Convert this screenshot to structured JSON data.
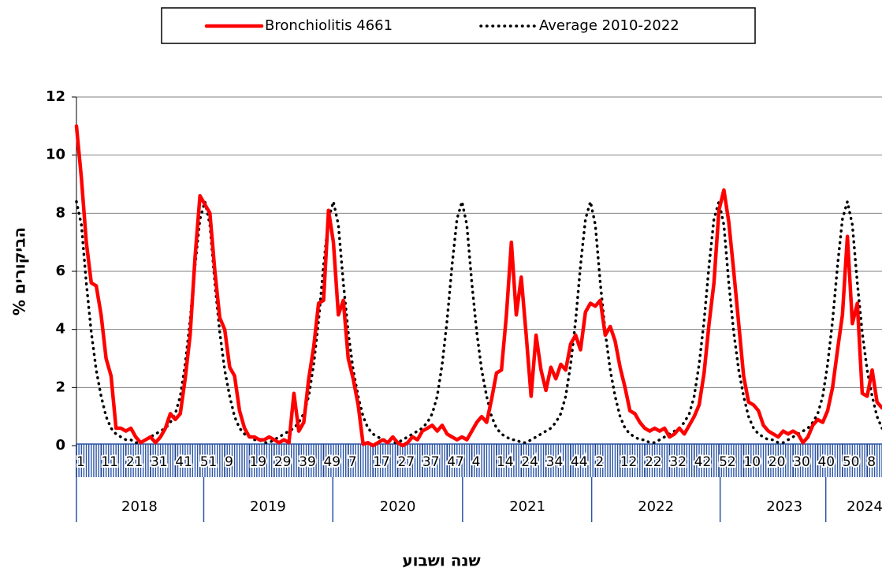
{
  "chart_data": {
    "type": "line",
    "x_title": "שנה ושבוע",
    "y_title": "% הביקורים",
    "xlim": [
      0,
      326
    ],
    "ylim": [
      0,
      12
    ],
    "yticks": [
      0,
      2,
      4,
      6,
      8,
      10,
      12
    ],
    "grid": true,
    "xticks": [
      {
        "value": 0,
        "label": "1"
      },
      {
        "value": 10,
        "label": "11"
      },
      {
        "value": 20,
        "label": "21"
      },
      {
        "value": 30,
        "label": "31"
      },
      {
        "value": 40,
        "label": "41"
      },
      {
        "value": 50,
        "label": "51"
      },
      {
        "value": 60,
        "label": "9"
      },
      {
        "value": 70,
        "label": "19"
      },
      {
        "value": 80,
        "label": "29"
      },
      {
        "value": 90,
        "label": "39"
      },
      {
        "value": 100,
        "label": "49"
      },
      {
        "value": 110,
        "label": "7"
      },
      {
        "value": 120,
        "label": "17"
      },
      {
        "value": 130,
        "label": "27"
      },
      {
        "value": 140,
        "label": "37"
      },
      {
        "value": 150,
        "label": "47"
      },
      {
        "value": 160,
        "label": "4"
      },
      {
        "value": 170,
        "label": "14"
      },
      {
        "value": 180,
        "label": "24"
      },
      {
        "value": 190,
        "label": "34"
      },
      {
        "value": 200,
        "label": "44"
      },
      {
        "value": 210,
        "label": "2"
      },
      {
        "value": 220,
        "label": "12"
      },
      {
        "value": 230,
        "label": "22"
      },
      {
        "value": 240,
        "label": "32"
      },
      {
        "value": 250,
        "label": "42"
      },
      {
        "value": 260,
        "label": "52"
      },
      {
        "value": 270,
        "label": "10"
      },
      {
        "value": 280,
        "label": "20"
      },
      {
        "value": 290,
        "label": "30"
      },
      {
        "value": 300,
        "label": "40"
      },
      {
        "value": 310,
        "label": "50"
      },
      {
        "value": 320,
        "label": "8"
      }
    ],
    "year_ticks": [
      {
        "value": 25.5,
        "label": "2018"
      },
      {
        "value": 77.5,
        "label": "2019"
      },
      {
        "value": 130,
        "label": "2020"
      },
      {
        "value": 182.5,
        "label": "2021"
      },
      {
        "value": 234.5,
        "label": "2022"
      },
      {
        "value": 286.5,
        "label": "2023"
      },
      {
        "value": 320,
        "label": "2024"
      }
    ],
    "x": [
      0,
      2,
      4,
      6,
      8,
      10,
      12,
      14,
      16,
      18,
      20,
      22,
      24,
      26,
      28,
      30,
      32,
      34,
      36,
      38,
      40,
      42,
      44,
      46,
      48,
      50,
      52,
      54,
      56,
      58,
      60,
      62,
      64,
      66,
      68,
      70,
      72,
      74,
      76,
      78,
      80,
      82,
      84,
      86,
      88,
      90,
      92,
      94,
      96,
      98,
      100,
      102,
      104,
      106,
      108,
      110,
      112,
      114,
      116,
      118,
      120,
      122,
      124,
      126,
      128,
      130,
      132,
      134,
      136,
      138,
      140,
      142,
      144,
      146,
      148,
      150,
      152,
      154,
      156,
      158,
      160,
      162,
      164,
      166,
      168,
      170,
      172,
      174,
      176,
      178,
      180,
      182,
      184,
      186,
      188,
      190,
      192,
      194,
      196,
      198,
      200,
      202,
      204,
      206,
      208,
      210,
      212,
      214,
      216,
      218,
      220,
      222,
      224,
      226,
      228,
      230,
      232,
      234,
      236,
      238,
      240,
      242,
      244,
      246,
      248,
      250,
      252,
      254,
      256,
      258,
      260,
      262,
      264,
      266,
      268,
      270,
      272,
      274,
      276,
      278,
      280,
      282,
      284,
      286,
      288,
      290,
      292,
      294,
      296,
      298,
      300,
      302,
      304,
      306,
      308,
      310,
      312,
      314,
      316,
      318,
      320,
      322,
      324,
      326
    ],
    "series": [
      {
        "name": "Bronchiolitis 4661",
        "color": "#ff0000",
        "style": "solid",
        "values": [
          11,
          9.2,
          7.0,
          5.6,
          5.5,
          4.5,
          3.0,
          2.4,
          0.6,
          0.6,
          0.5,
          0.6,
          0.3,
          0.1,
          0.2,
          0.3,
          0.1,
          0.3,
          0.6,
          1.1,
          0.9,
          1.1,
          2.3,
          3.8,
          6.5,
          8.6,
          8.3,
          8.0,
          6.0,
          4.4,
          4.0,
          2.7,
          2.4,
          1.2,
          0.6,
          0.3,
          0.3,
          0.2,
          0.2,
          0.3,
          0.2,
          0.1,
          0.2,
          0.1,
          1.8,
          0.5,
          0.8,
          2.3,
          3.4,
          4.9,
          5.0,
          8.1,
          7.0,
          4.5,
          5.0,
          3.0,
          2.3,
          1.4,
          0.05,
          0.1,
          0.0,
          0.1,
          0.2,
          0.1,
          0.3,
          0.1,
          0.0,
          0.1,
          0.3,
          0.2,
          0.5,
          0.6,
          0.7,
          0.5,
          0.7,
          0.4,
          0.3,
          0.2,
          0.3,
          0.2,
          0.5,
          0.8,
          1.0,
          0.8,
          1.6,
          2.5,
          2.6,
          4.5,
          7.0,
          4.5,
          5.8,
          3.8,
          1.7,
          3.8,
          2.6,
          1.9,
          2.7,
          2.3,
          2.8,
          2.6,
          3.5,
          3.8,
          3.3,
          4.6,
          4.9,
          4.8,
          5.0,
          3.8,
          4.1,
          3.6,
          2.7,
          2.0,
          1.2,
          1.1,
          0.8,
          0.6,
          0.5,
          0.6,
          0.5,
          0.6,
          0.3,
          0.4,
          0.6,
          0.4,
          0.7,
          1.0,
          1.4,
          2.5,
          4.2,
          5.6,
          8.1,
          8.8,
          7.7,
          6.0,
          4.2,
          2.4,
          1.5,
          1.4,
          1.2,
          0.7,
          0.5,
          0.4,
          0.3,
          0.5,
          0.4,
          0.5,
          0.4,
          0.1,
          0.3,
          0.7,
          0.9,
          0.8,
          1.2,
          2.0,
          3.3,
          4.5,
          7.2,
          4.2,
          4.9,
          1.8,
          1.7,
          2.6,
          1.5,
          1.3
        ]
      },
      {
        "name": "Average 2010-2022",
        "color": "#000000",
        "style": "dotted",
        "values": [
          8.4,
          7.6,
          5.6,
          3.9,
          2.6,
          1.7,
          1.0,
          0.6,
          0.4,
          0.3,
          0.2,
          0.2,
          0.1,
          0.1,
          0.2,
          0.3,
          0.4,
          0.5,
          0.6,
          0.8,
          1.1,
          1.7,
          2.8,
          4.3,
          6.2,
          7.8,
          8.4,
          7.6,
          5.6,
          3.9,
          2.6,
          1.7,
          1.0,
          0.6,
          0.4,
          0.3,
          0.2,
          0.2,
          0.1,
          0.1,
          0.2,
          0.3,
          0.4,
          0.5,
          0.6,
          0.8,
          1.1,
          1.7,
          2.8,
          4.3,
          6.2,
          7.8,
          8.4,
          7.6,
          5.6,
          3.9,
          2.6,
          1.7,
          1.0,
          0.6,
          0.4,
          0.3,
          0.2,
          0.2,
          0.1,
          0.1,
          0.2,
          0.3,
          0.4,
          0.5,
          0.6,
          0.8,
          1.1,
          1.7,
          2.8,
          4.3,
          6.2,
          7.8,
          8.4,
          7.6,
          5.6,
          3.9,
          2.6,
          1.7,
          1.0,
          0.6,
          0.4,
          0.3,
          0.2,
          0.2,
          0.1,
          0.1,
          0.2,
          0.3,
          0.4,
          0.5,
          0.6,
          0.8,
          1.1,
          1.7,
          2.8,
          4.3,
          6.2,
          7.8,
          8.4,
          7.6,
          5.6,
          3.9,
          2.6,
          1.7,
          1.0,
          0.6,
          0.4,
          0.3,
          0.2,
          0.2,
          0.1,
          0.1,
          0.2,
          0.3,
          0.4,
          0.5,
          0.6,
          0.8,
          1.1,
          1.7,
          2.8,
          4.3,
          6.2,
          7.8,
          8.4,
          7.6,
          5.6,
          3.9,
          2.6,
          1.7,
          1.0,
          0.6,
          0.4,
          0.3,
          0.2,
          0.2,
          0.1,
          0.1,
          0.2,
          0.3,
          0.4,
          0.5,
          0.6,
          0.8,
          1.1,
          1.7,
          2.8,
          4.3,
          6.2,
          7.8,
          8.4,
          7.6,
          5.6,
          3.9,
          2.6,
          1.7,
          1.0,
          0.6
        ]
      }
    ]
  }
}
